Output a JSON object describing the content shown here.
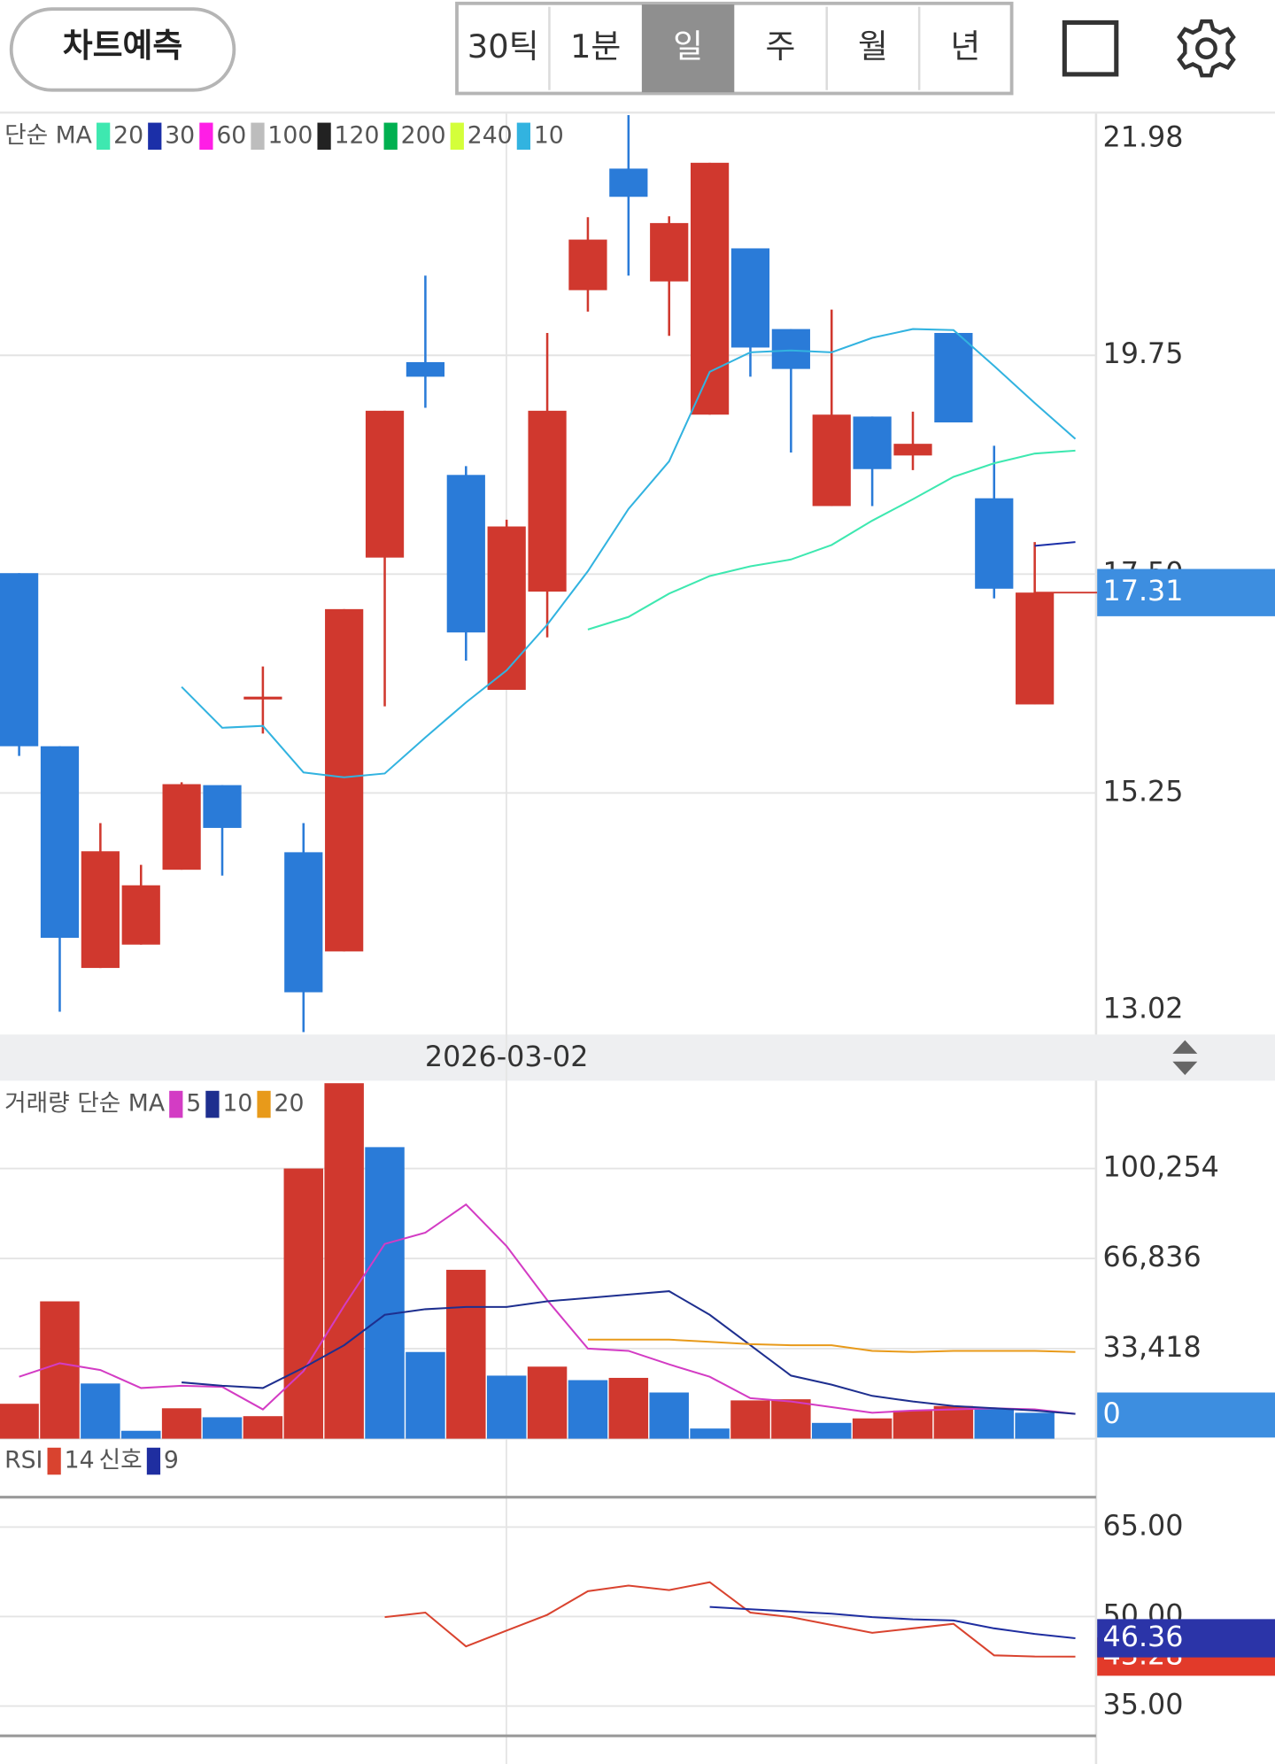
{
  "toolbar": {
    "predict_button": "차트예측",
    "periods": [
      "30틱",
      "1분",
      "일",
      "주",
      "월",
      "년"
    ],
    "selected_period": 2
  },
  "chart_data": [
    {
      "type": "candlestick",
      "legend_title": "단순 MA",
      "categories": [
        null,
        null,
        null,
        null,
        null,
        null,
        null,
        null,
        null,
        null,
        null,
        null,
        "2026-03-02",
        null,
        null,
        null,
        null,
        null,
        null,
        null,
        null,
        null,
        null,
        null,
        null,
        null,
        null
      ],
      "open": [
        17.51,
        15.73,
        13.45,
        13.69,
        14.46,
        15.33,
        16.22,
        14.64,
        13.62,
        17.67,
        19.68,
        18.52,
        16.31,
        17.32,
        20.42,
        21.67,
        20.51,
        19.14,
        20.85,
        20.02,
        18.2,
        19.12,
        18.72,
        19.98,
        18.28,
        16.16,
        null
      ],
      "high": [
        17.51,
        15.73,
        14.94,
        14.51,
        15.36,
        15.33,
        16.55,
        14.94,
        17.14,
        19.18,
        20.57,
        18.61,
        18.06,
        19.98,
        21.17,
        22.22,
        21.18,
        21.73,
        20.85,
        20.02,
        20.22,
        19.12,
        19.17,
        19.98,
        18.82,
        17.83,
        null
      ],
      "low": [
        15.63,
        13.0,
        13.45,
        13.69,
        14.46,
        14.4,
        15.86,
        12.79,
        13.62,
        16.14,
        19.21,
        16.61,
        16.31,
        16.85,
        20.2,
        20.57,
        19.95,
        19.14,
        19.53,
        18.75,
        18.2,
        18.2,
        18.57,
        19.06,
        17.25,
        16.16,
        null
      ],
      "close": [
        15.73,
        13.76,
        14.65,
        14.3,
        15.34,
        14.89,
        16.24,
        13.2,
        17.14,
        19.18,
        19.53,
        16.9,
        17.99,
        19.18,
        20.94,
        21.38,
        21.11,
        21.73,
        19.83,
        19.61,
        19.14,
        18.58,
        18.84,
        19.06,
        17.35,
        17.31,
        null
      ],
      "up_color": "#d0382e",
      "down_color": "#2a7bd8",
      "ylim": [
        13.02,
        21.98
      ],
      "yticks": [
        21.98,
        19.75,
        {
          "value": 17.5,
          "label": "17.50"
        },
        15.25,
        13.02
      ],
      "series": [
        {
          "name": "20",
          "color": "#3ee8b0",
          "values": [
            null,
            null,
            null,
            null,
            null,
            null,
            null,
            null,
            null,
            null,
            null,
            null,
            null,
            null,
            16.93,
            17.06,
            17.3,
            17.48,
            17.58,
            17.65,
            17.8,
            18.05,
            18.27,
            18.5,
            18.64,
            18.74,
            18.77
          ]
        },
        {
          "name": "30",
          "color": "#1b2fa8",
          "values": [
            null,
            null,
            null,
            null,
            null,
            null,
            null,
            null,
            null,
            null,
            null,
            null,
            null,
            null,
            null,
            null,
            null,
            null,
            null,
            null,
            null,
            null,
            null,
            null,
            null,
            17.79,
            17.83
          ]
        },
        {
          "name": "60",
          "color": "#ff1ee6",
          "values": [
            null,
            null,
            null,
            null,
            null,
            null,
            null,
            null,
            null,
            null,
            null,
            null,
            null,
            null,
            null,
            null,
            null,
            null,
            null,
            null,
            null,
            null,
            null,
            null,
            null,
            null,
            null
          ]
        },
        {
          "name": "100",
          "color": "#bdbdbd",
          "values": [
            null,
            null,
            null,
            null,
            null,
            null,
            null,
            null,
            null,
            null,
            null,
            null,
            null,
            null,
            null,
            null,
            null,
            null,
            null,
            null,
            null,
            null,
            null,
            null,
            null,
            null,
            null
          ]
        },
        {
          "name": "120",
          "color": "#222222",
          "values": [
            null,
            null,
            null,
            null,
            null,
            null,
            null,
            null,
            null,
            null,
            null,
            null,
            null,
            null,
            null,
            null,
            null,
            null,
            null,
            null,
            null,
            null,
            null,
            null,
            null,
            null,
            null
          ]
        },
        {
          "name": "200",
          "color": "#00b050",
          "values": [
            null,
            null,
            null,
            null,
            null,
            null,
            null,
            null,
            null,
            null,
            null,
            null,
            null,
            null,
            null,
            null,
            null,
            null,
            null,
            null,
            null,
            null,
            null,
            null,
            null,
            null,
            null
          ]
        },
        {
          "name": "240",
          "color": "#d4ff3a",
          "values": [
            null,
            null,
            null,
            null,
            null,
            null,
            null,
            null,
            null,
            null,
            null,
            null,
            null,
            null,
            null,
            null,
            null,
            null,
            null,
            null,
            null,
            null,
            null,
            null,
            null,
            null,
            null
          ]
        },
        {
          "name": "10",
          "color": "#32b3e0",
          "values": [
            null,
            null,
            null,
            null,
            16.34,
            15.92,
            15.94,
            15.46,
            15.41,
            15.45,
            15.82,
            16.18,
            16.51,
            16.98,
            17.53,
            18.17,
            18.66,
            19.58,
            19.78,
            19.8,
            19.78,
            19.93,
            20.02,
            20.01,
            19.64,
            19.26,
            18.89
          ]
        }
      ]
    },
    {
      "type": "bar",
      "legend_title": "거래량 단순 MA",
      "values": [
        12950,
        50960,
        20470,
        2920,
        11280,
        7940,
        8350,
        100250,
        131900,
        108180,
        32160,
        62660,
        23390,
        26730,
        21720,
        22560,
        17130,
        3760,
        14200,
        14620,
        5850,
        7520,
        10440,
        12110,
        11280,
        9610,
        0
      ],
      "colors": [
        "#d0382e",
        "#d0382e",
        "#2a7bd8",
        "#2a7bd8",
        "#d0382e",
        "#2a7bd8",
        "#d0382e",
        "#d0382e",
        "#d0382e",
        "#2a7bd8",
        "#2a7bd8",
        "#d0382e",
        "#2a7bd8",
        "#d0382e",
        "#2a7bd8",
        "#d0382e",
        "#2a7bd8",
        "#2a7bd8",
        "#d0382e",
        "#d0382e",
        "#2a7bd8",
        "#d0382e",
        "#d0382e",
        "#d0382e",
        "#2a7bd8",
        "#2a7bd8",
        null
      ],
      "ylim": [
        0,
        132000
      ],
      "yticks": [
        {
          "value": 100254,
          "label": "100,254"
        },
        {
          "value": 66836,
          "label": "66,836"
        },
        {
          "value": 33418,
          "label": "33,418"
        }
      ],
      "series": [
        {
          "name": "5",
          "color": "#d33cc4",
          "values": [
            22970,
            27990,
            25480,
            18800,
            19630,
            19210,
            10860,
            25060,
            49290,
            72260,
            76440,
            86880,
            71430,
            51380,
            33420,
            32580,
            27570,
            22970,
            15040,
            13780,
            11700,
            9610,
            10440,
            10860,
            11280,
            10860,
            9190
          ]
        },
        {
          "name": "10",
          "color": "#1e2f8f",
          "values": [
            null,
            null,
            null,
            null,
            20890,
            19630,
            18800,
            26320,
            34670,
            45950,
            48040,
            48870,
            48870,
            50960,
            52210,
            53470,
            54720,
            45950,
            34670,
            23390,
            20050,
            15870,
            13780,
            12110,
            11280,
            10440,
            9190
          ]
        },
        {
          "name": "20",
          "color": "#e89a1a",
          "values": [
            null,
            null,
            null,
            null,
            null,
            null,
            null,
            null,
            null,
            null,
            null,
            null,
            null,
            null,
            36760,
            36760,
            36760,
            35920,
            35090,
            34670,
            34670,
            32580,
            32160,
            32580,
            32580,
            32580,
            32160
          ]
        }
      ]
    },
    {
      "type": "line",
      "legend_title": "RSI",
      "ylim": [
        30,
        70
      ],
      "yticks": [
        {
          "value": 65,
          "label": "65.00"
        },
        {
          "value": 50,
          "label": "50.00"
        },
        {
          "value": 35,
          "label": "35.00"
        }
      ],
      "series": [
        {
          "name": "14",
          "color": "#d9432f",
          "values": [
            null,
            null,
            null,
            null,
            null,
            null,
            null,
            null,
            null,
            49.91,
            50.66,
            45.0,
            47.64,
            50.28,
            54.25,
            55.19,
            54.43,
            55.75,
            50.66,
            49.91,
            48.58,
            47.26,
            48.02,
            48.77,
            43.49,
            43.3,
            43.28
          ]
        },
        {
          "title": "신호",
          "name": "9",
          "color": "#1f2ea0",
          "values": [
            null,
            null,
            null,
            null,
            null,
            null,
            null,
            null,
            null,
            null,
            null,
            null,
            null,
            null,
            null,
            null,
            null,
            51.6,
            51.23,
            50.85,
            50.47,
            49.91,
            49.53,
            49.34,
            48.02,
            47.08,
            46.36
          ]
        }
      ]
    }
  ]
}
